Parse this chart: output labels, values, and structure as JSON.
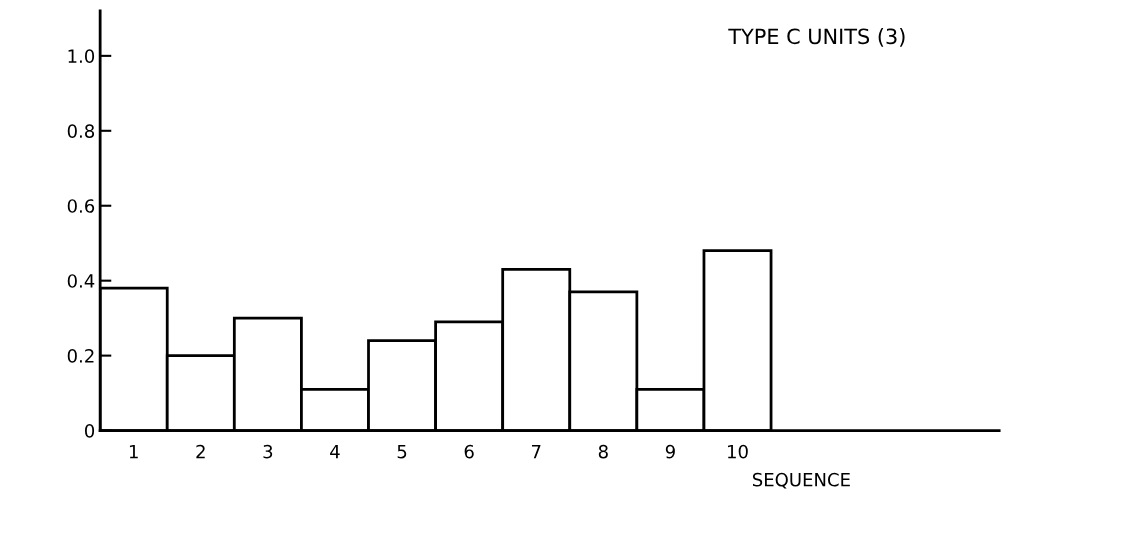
{
  "chart_data": {
    "type": "bar",
    "title": "TYPE C UNITS (3)",
    "xlabel": "SEQUENCE",
    "categories": [
      "1",
      "2",
      "3",
      "4",
      "5",
      "6",
      "7",
      "8",
      "9",
      "10"
    ],
    "values": [
      0.38,
      0.2,
      0.3,
      0.11,
      0.24,
      0.29,
      0.43,
      0.37,
      0.11,
      0.48
    ],
    "color": "#ffffff",
    "ylim": [
      0,
      1.12
    ],
    "yticks": [
      0,
      0.2,
      0.4,
      0.6,
      0.8,
      {
        "value": 1,
        "label": "1.0"
      }
    ],
    "grid": false
  }
}
